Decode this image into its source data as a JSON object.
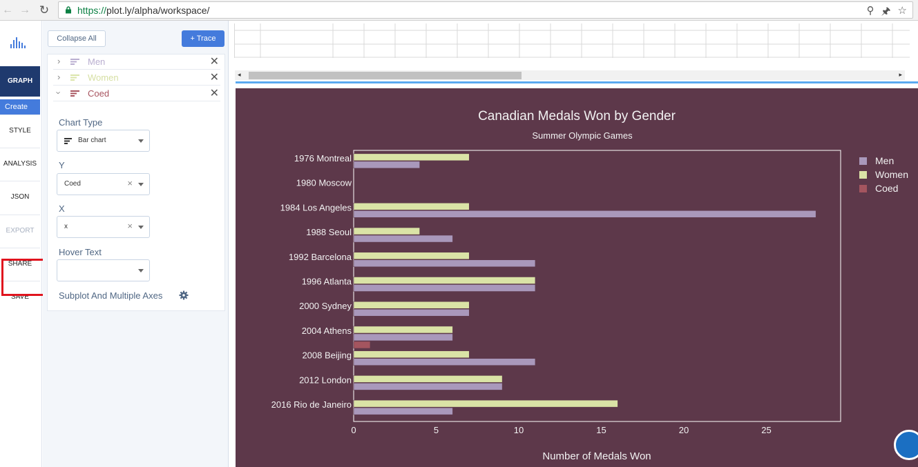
{
  "browser": {
    "url_scheme": "https://",
    "url_rest": "plot.ly/alpha/workspace/"
  },
  "nav": {
    "graph": "GRAPH",
    "create": "Create",
    "style": "STYLE",
    "analysis": "ANALYSIS",
    "json": "JSON",
    "export": "EXPORT",
    "share": "SHARE",
    "save": "SAVE"
  },
  "panel": {
    "collapse_all": "Collapse All",
    "add_trace": "+ Trace",
    "traces": [
      {
        "name": "Men",
        "color": "#b0a4c8"
      },
      {
        "name": "Women",
        "color": "#d9e4a6"
      },
      {
        "name": "Coed",
        "color": "#a8545f"
      }
    ],
    "chart_type_label": "Chart Type",
    "chart_type_value": "Bar chart",
    "y_label": "Y",
    "y_value": "Coed",
    "x_label": "X",
    "x_value": "x",
    "hover_label": "Hover Text",
    "hover_value": "",
    "subplot_label": "Subplot And Multiple Axes"
  },
  "chart_data": {
    "type": "bar",
    "orientation": "horizontal",
    "title": "Canadian Medals Won by Gender",
    "subtitle": "Summer Olympic Games",
    "xlabel": "Number of Medals Won",
    "ylabel": "",
    "xlim": [
      0,
      29.5
    ],
    "xticks": [
      0,
      5,
      10,
      15,
      20,
      25
    ],
    "categories": [
      "1976 Montreal",
      "1980 Moscow",
      "1984 Los Angeles",
      "1988 Seoul",
      "1992 Barcelona",
      "1996 Atlanta",
      "2000 Sydney",
      "2004 Athens",
      "2008 Beijing",
      "2012 London",
      "2016 Rio de Janeiro"
    ],
    "series": [
      {
        "name": "Men",
        "color": "#a998bb",
        "values": [
          4,
          0,
          28,
          6,
          11,
          11,
          7,
          6,
          11,
          9,
          6
        ]
      },
      {
        "name": "Women",
        "color": "#dae3a6",
        "values": [
          7,
          0,
          7,
          4,
          7,
          11,
          7,
          6,
          7,
          9,
          16
        ]
      },
      {
        "name": "Coed",
        "color": "#a4555f",
        "values": [
          0,
          0,
          0,
          0,
          0,
          0,
          0,
          1,
          0,
          0,
          0
        ]
      }
    ],
    "legend_position": "right",
    "background": "#5d384a",
    "grid": false
  }
}
